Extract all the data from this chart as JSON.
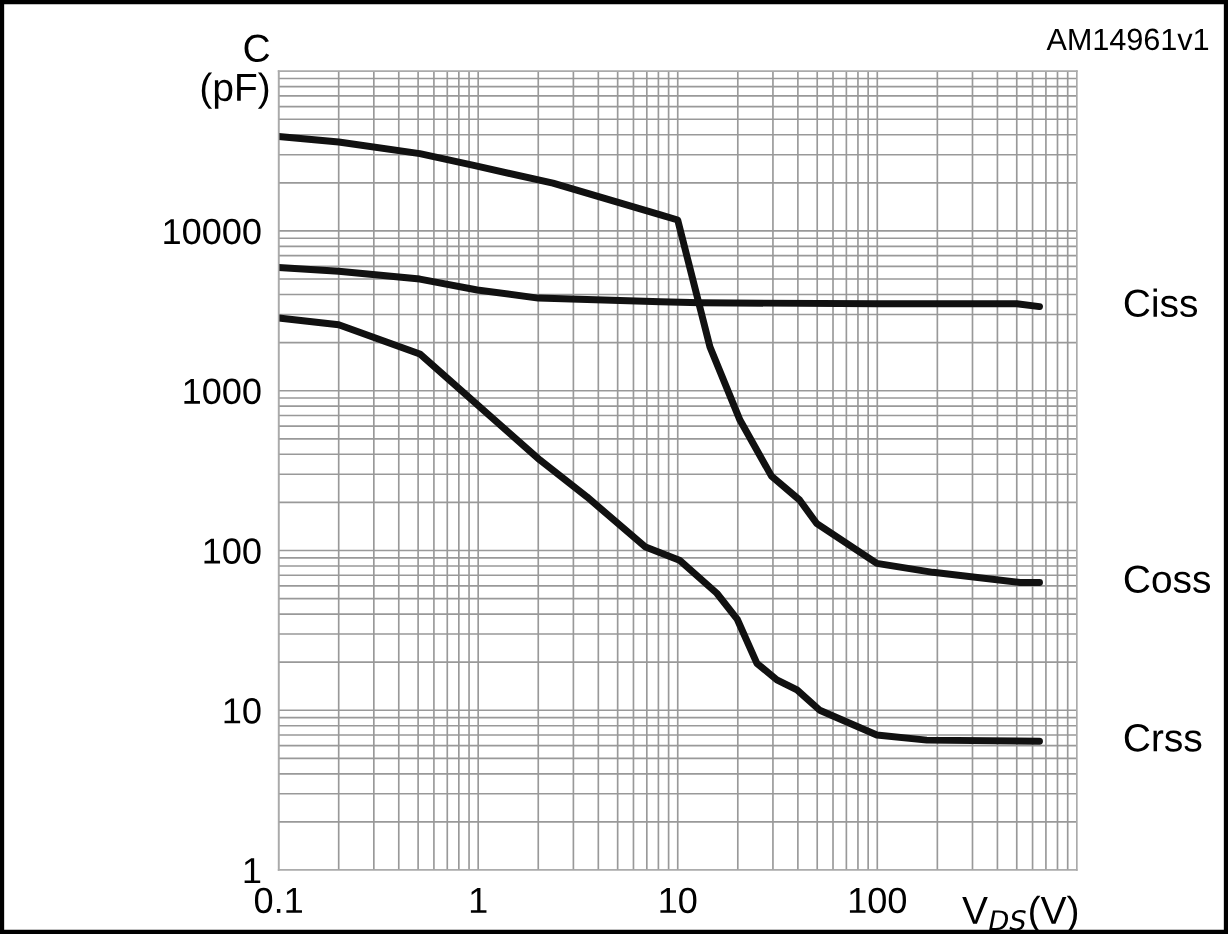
{
  "chart_data": {
    "type": "line",
    "ylabel": "C\n(pF)",
    "xlabel": "V$_{DS}$(V)",
    "annotations": [
      "AM14961v1"
    ],
    "log": "xy",
    "grid": true,
    "line_style": "solid",
    "marker": "none",
    "xlim": [
      0.1,
      1000
    ],
    "xticks": [
      0.1,
      1,
      10,
      100
    ],
    "ylim": [
      1,
      100000
    ],
    "yticks": [
      1,
      10,
      100,
      1000,
      10000
    ],
    "series": [
      {
        "name": "Ciss",
        "color": "#111111",
        "x": [
          0.1,
          0.2,
          0.51,
          0.99,
          2.0,
          8.2,
          13,
          100,
          500,
          650
        ],
        "values": [
          5900,
          5600,
          5000,
          4270,
          3800,
          3600,
          3550,
          3500,
          3500,
          3360
        ]
      },
      {
        "name": "Coss",
        "color": "#111111",
        "x": [
          0.1,
          0.2,
          0.51,
          0.95,
          2.37,
          8.2,
          10,
          14.5,
          20.5,
          29.5,
          40.8,
          49.6,
          99.5,
          190,
          520,
          650
        ],
        "values": [
          39000,
          36000,
          30500,
          25700,
          19900,
          12600,
          11700,
          1880,
          655,
          292,
          207,
          148,
          83,
          73,
          63,
          63
        ]
      },
      {
        "name": "Crss",
        "color": "#111111",
        "x": [
          0.1,
          0.2,
          0.51,
          2.04,
          3.5,
          6.9,
          10.2,
          15.7,
          19.9,
          24.9,
          31.4,
          39.6,
          51.5,
          99.5,
          177,
          650
        ],
        "values": [
          2850,
          2590,
          1700,
          368,
          217,
          105,
          87,
          54,
          37,
          19.7,
          15.5,
          13.4,
          10,
          7.0,
          6.5,
          6.4
        ]
      }
    ]
  }
}
